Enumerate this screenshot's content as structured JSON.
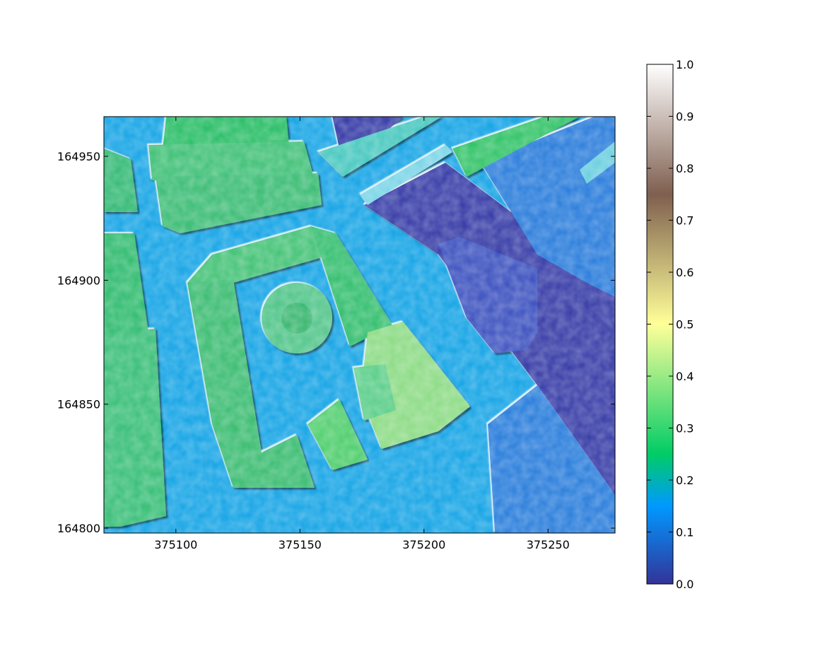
{
  "chart_data": {
    "type": "heatmap",
    "title": "",
    "xlabel": "",
    "ylabel": "",
    "xlim": [
      375071,
      375277
    ],
    "ylim": [
      164798,
      164966
    ],
    "x_ticks": [
      375100,
      375150,
      375200,
      375250
    ],
    "y_ticks": [
      164800,
      164850,
      164900,
      164950
    ],
    "colorbar": {
      "colormap": "terrain",
      "range": [
        0.0,
        1.0
      ],
      "ticks": [
        0.0,
        0.1,
        0.2,
        0.3,
        0.4,
        0.5,
        0.6,
        0.7,
        0.8,
        0.9,
        1.0
      ],
      "tick_labels": [
        "0.0",
        "0.1",
        "0.2",
        "0.3",
        "0.4",
        "0.5",
        "0.6",
        "0.7",
        "0.8",
        "0.9",
        "1.0"
      ],
      "color_stops": [
        {
          "value": 0.0,
          "color": "#333399"
        },
        {
          "value": 0.15,
          "color": "#0099ff"
        },
        {
          "value": 0.25,
          "color": "#00cc66"
        },
        {
          "value": 0.5,
          "color": "#ffff99"
        },
        {
          "value": 0.75,
          "color": "#7f5f4f"
        },
        {
          "value": 1.0,
          "color": "#ffffff"
        }
      ]
    },
    "rendering": "hillshaded elevation map"
  }
}
